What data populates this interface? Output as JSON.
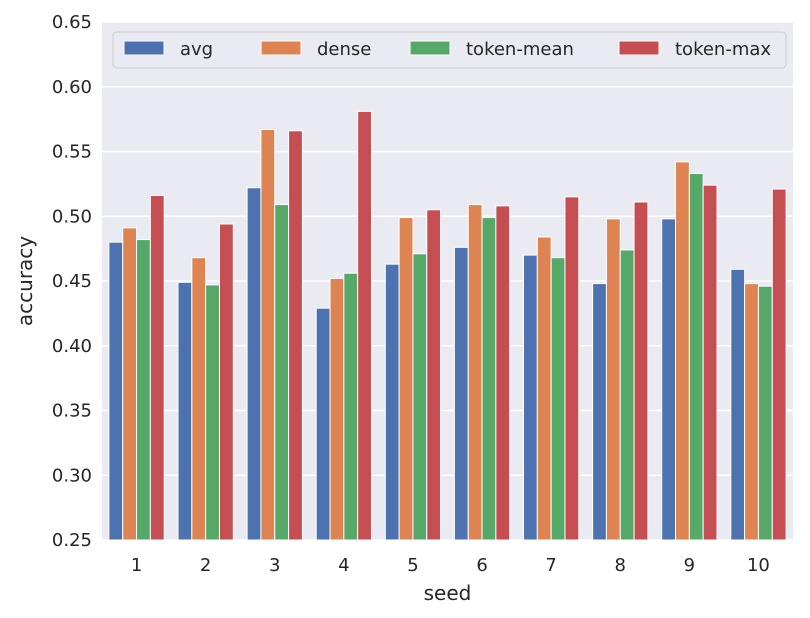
{
  "chart_data": {
    "type": "bar",
    "title": "",
    "xlabel": "seed",
    "ylabel": "accuracy",
    "categories": [
      "1",
      "2",
      "3",
      "4",
      "5",
      "6",
      "7",
      "8",
      "9",
      "10"
    ],
    "ylim": [
      0.25,
      0.65
    ],
    "yticks": [
      "0.25",
      "0.30",
      "0.35",
      "0.40",
      "0.45",
      "0.50",
      "0.55",
      "0.60",
      "0.65"
    ],
    "grid": true,
    "legend_position": "top",
    "series": [
      {
        "name": "avg",
        "color": "#4c72b0",
        "values": [
          0.48,
          0.449,
          0.522,
          0.429,
          0.463,
          0.476,
          0.47,
          0.448,
          0.498,
          0.459
        ]
      },
      {
        "name": "dense",
        "color": "#dd8452",
        "values": [
          0.491,
          0.468,
          0.567,
          0.452,
          0.499,
          0.509,
          0.484,
          0.498,
          0.542,
          0.448
        ]
      },
      {
        "name": "token-mean",
        "color": "#55a868",
        "values": [
          0.482,
          0.447,
          0.509,
          0.456,
          0.471,
          0.499,
          0.468,
          0.474,
          0.533,
          0.446
        ]
      },
      {
        "name": "token-max",
        "color": "#c44e52",
        "values": [
          0.516,
          0.494,
          0.566,
          0.581,
          0.505,
          0.508,
          0.515,
          0.511,
          0.524,
          0.521
        ]
      }
    ]
  }
}
